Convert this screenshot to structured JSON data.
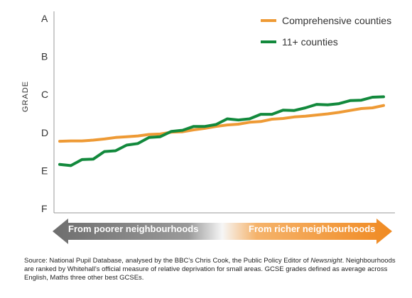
{
  "colors": {
    "comprehensive": "#ee9a35",
    "selective": "#12893c",
    "axis": "#9a9a9a",
    "arrow_left": "#7a7a7a",
    "arrow_right": "#f08a22"
  },
  "chart_data": {
    "type": "line",
    "ylabel": "GRADE",
    "y_ticks": [
      "A",
      "B",
      "C",
      "D",
      "E",
      "F"
    ],
    "ylim_grade_points": [
      0,
      5
    ],
    "x": [
      1,
      2,
      3,
      4,
      5,
      6,
      7,
      8,
      9,
      10,
      11,
      12,
      13,
      14,
      15,
      16,
      17,
      18,
      19,
      20,
      21,
      22,
      23,
      24,
      25,
      26,
      27,
      28,
      29,
      30
    ],
    "series": [
      {
        "name": "Comprehensive counties",
        "color": "#ee9a35",
        "values": [
          1.77,
          1.78,
          1.78,
          1.8,
          1.83,
          1.87,
          1.89,
          1.91,
          1.95,
          1.96,
          2.01,
          2.02,
          2.07,
          2.11,
          2.16,
          2.2,
          2.22,
          2.27,
          2.29,
          2.35,
          2.37,
          2.41,
          2.43,
          2.46,
          2.49,
          2.53,
          2.58,
          2.63,
          2.65,
          2.71
        ]
      },
      {
        "name": "11+ counties",
        "color": "#12893c",
        "values": [
          1.16,
          1.13,
          1.29,
          1.3,
          1.5,
          1.52,
          1.67,
          1.71,
          1.87,
          1.89,
          2.03,
          2.06,
          2.16,
          2.16,
          2.21,
          2.36,
          2.33,
          2.36,
          2.48,
          2.48,
          2.59,
          2.58,
          2.65,
          2.74,
          2.73,
          2.76,
          2.84,
          2.85,
          2.93,
          2.94
        ]
      }
    ],
    "x_direction": {
      "left": "From poorer neighbourhoods",
      "right": "From richer neighbourhoods"
    }
  },
  "source": {
    "prefix": "Source: National Pupil Database, analysed by the BBC’s Chris Cook, the Public Policy Editor of ",
    "italic": "Newsnight",
    "suffix": ". Neighbourhoods are ranked by Whitehall’s official measure of relative deprivation for small areas. GCSE grades defined as average across English, Maths three other best GCSEs."
  }
}
